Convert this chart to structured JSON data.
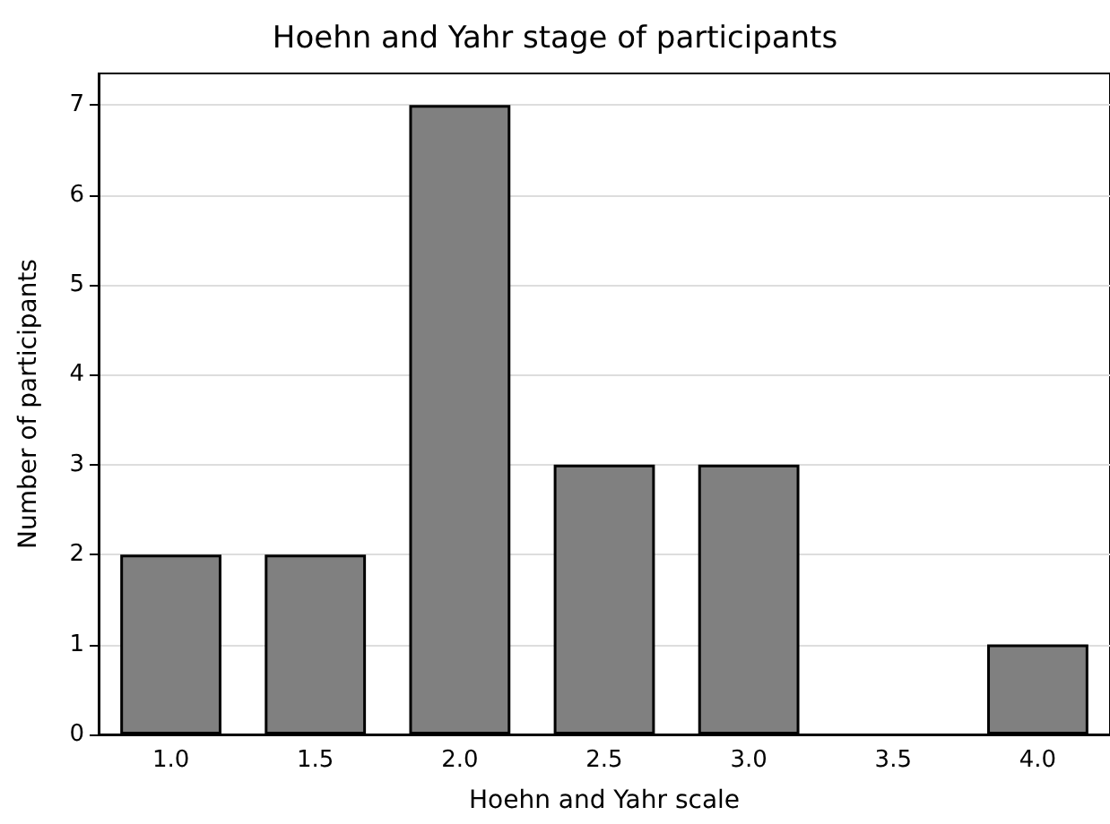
{
  "chart_data": {
    "type": "bar",
    "title": "Hoehn and Yahr stage of participants",
    "xlabel": "Hoehn and Yahr scale",
    "ylabel": "Number of participants",
    "categories": [
      "1.0",
      "1.5",
      "2.0",
      "2.5",
      "3.0",
      "3.5",
      "4.0"
    ],
    "values": [
      2,
      2,
      7,
      3,
      3,
      0,
      1
    ],
    "color": "#808080",
    "ylim": [
      0,
      7.35
    ],
    "yticks": [
      0,
      1,
      2,
      3,
      4,
      5,
      6,
      7
    ],
    "grid": "y"
  }
}
